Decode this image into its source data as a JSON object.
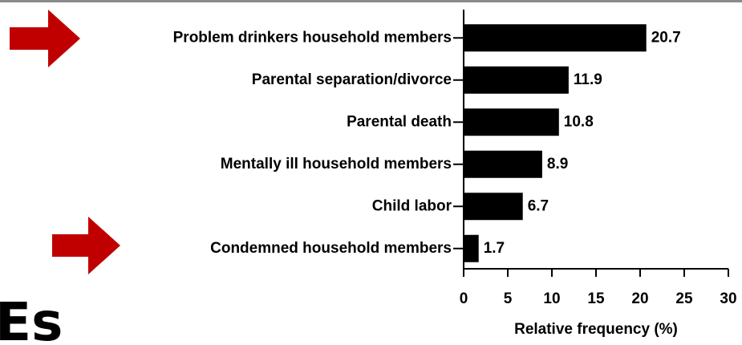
{
  "chart_data": {
    "type": "hbar",
    "categories": [
      "Problem drinkers household members",
      "Parental separation/divorce",
      "Parental death",
      "Mentally ill household members",
      "Child labor",
      "Condemned household members"
    ],
    "values": [
      20.7,
      11.9,
      10.8,
      8.9,
      6.7,
      1.7
    ],
    "color": "#000000",
    "xlabel": "Relative frequency (%)",
    "xlim": [
      0,
      30
    ],
    "xticks": [
      0,
      5,
      10,
      15,
      20,
      25,
      30
    ],
    "grid": false
  },
  "background_text": "Es"
}
